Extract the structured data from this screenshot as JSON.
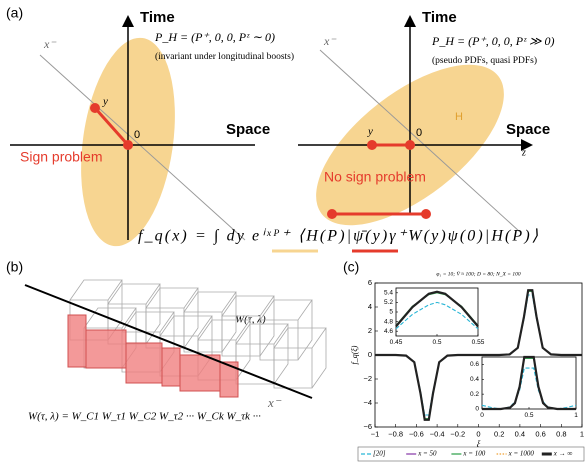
{
  "panel_a": {
    "label": "(a)",
    "left": {
      "time": "Time",
      "space": "Space",
      "light_cone": "x⁻",
      "momentum": "P_H = (P⁺, 0, 0, Pᶻ ∼ 0)",
      "note": "(invariant under longitudinal boosts)",
      "point_y": "y",
      "origin": "0",
      "caption": "Sign problem"
    },
    "right": {
      "time": "Time",
      "space": "Space",
      "light_cone": "x⁻",
      "momentum": "P_H = (P⁺, 0, 0, Pᶻ ≫ 0)",
      "note": "(pseudo PDFs, quasi PDFs)",
      "hadron": "H",
      "point_y": "y",
      "origin": "0",
      "z_axis": "z",
      "caption": "No sign problem"
    },
    "formula": "f_q(x) = ∫ dy eⁱˣᴾ⁺ ⟨H(P)|ψ̄(y)γ⁺W(y)ψ(0)|H(P)⟩"
  },
  "panel_b": {
    "label": "(b)",
    "wilson_line": "W(τ, λ)",
    "light_cone": "x⁻",
    "formula": "W(τ, λ) = W_C1 W_τ1 W_C2 W_τ2 ··· W_Ck W_τk ···"
  },
  "panel_c": {
    "label": "(c)"
  },
  "chart_data": [
    {
      "type": "line",
      "title": "φ₁ = 10;  V̄ ≈ 100;  D = 80;  N_X = 100",
      "x_label": "ξ",
      "y_label": "f_q(ξ)",
      "x": [
        -1,
        -0.8,
        -0.7,
        -0.62,
        -0.56,
        -0.52,
        -0.48,
        -0.44,
        -0.38,
        -0.3,
        -0.2,
        0,
        0.2,
        0.3,
        0.38,
        0.44,
        0.48,
        0.52,
        0.56,
        0.62,
        0.7,
        0.8,
        1
      ],
      "xlim": [
        -1,
        1
      ],
      "ylim": [
        -6,
        6
      ],
      "xticks": [
        {
          "value": -1,
          "label": "−1"
        },
        {
          "value": -0.8,
          "label": "−0.8"
        },
        {
          "value": -0.6,
          "label": "−0.6"
        },
        {
          "value": -0.4,
          "label": "−0.4"
        },
        {
          "value": -0.2,
          "label": "−0.2"
        },
        0,
        0.2,
        0.4,
        0.6,
        0.8,
        1
      ],
      "yticks": [
        {
          "value": -6,
          "label": "−6"
        },
        {
          "value": -4,
          "label": "−4"
        },
        {
          "value": -2,
          "label": "−2"
        },
        0,
        2,
        4,
        6
      ],
      "legend": "bottom",
      "series": [
        {
          "name": "[20]",
          "color": "#29b6d6",
          "style": "dashed",
          "values": [
            0,
            0,
            -0.05,
            -0.6,
            -3,
            -5,
            -5,
            -3,
            -0.6,
            -0.05,
            0,
            0,
            0,
            0.05,
            0.6,
            3,
            5,
            5,
            3,
            0.6,
            0.05,
            0,
            0
          ]
        },
        {
          "name": "x = 50",
          "color": "#8e44ad",
          "style": "solid",
          "values": [
            0,
            0,
            -0.05,
            -0.6,
            -3.2,
            -5.3,
            -5.3,
            -3.2,
            -0.6,
            -0.05,
            0,
            0,
            0,
            0.05,
            0.6,
            3.2,
            5.3,
            5.3,
            3.2,
            0.6,
            0.05,
            0,
            0
          ]
        },
        {
          "name": "x = 100",
          "color": "#3aa655",
          "style": "solid",
          "values": [
            0,
            0,
            -0.05,
            -0.6,
            -3.2,
            -5.3,
            -5.3,
            -3.2,
            -0.6,
            -0.05,
            0,
            0,
            0,
            0.05,
            0.6,
            3.2,
            5.3,
            5.3,
            3.2,
            0.6,
            0.05,
            0,
            0
          ]
        },
        {
          "name": "x = 1000",
          "color": "#f0a030",
          "style": "dotted",
          "values": [
            0,
            0,
            -0.05,
            -0.6,
            -3.2,
            -5.4,
            -5.4,
            -3.2,
            -0.6,
            -0.05,
            0,
            0,
            0,
            0.05,
            0.6,
            3.2,
            5.4,
            5.4,
            3.2,
            0.6,
            0.05,
            0,
            0
          ]
        },
        {
          "name": "x → ∞",
          "color": "#222222",
          "style": "thick",
          "values": [
            0,
            0,
            -0.05,
            -0.6,
            -3.2,
            -5.4,
            -5.4,
            -3.2,
            -0.6,
            -0.05,
            0,
            0,
            0,
            0.05,
            0.6,
            3.2,
            5.4,
            5.4,
            3.2,
            0.6,
            0.05,
            0,
            0
          ]
        }
      ]
    },
    {
      "type": "line",
      "x": [
        0.45,
        0.47,
        0.49,
        0.5,
        0.51,
        0.53,
        0.55
      ],
      "xlim": [
        0.45,
        0.55
      ],
      "ylim": [
        4.5,
        5.5
      ],
      "xticks": [
        0.45,
        0.5,
        0.55
      ],
      "yticks": [
        4.6,
        4.8,
        5,
        5.2,
        5.4
      ],
      "series": [
        {
          "color": "#29b6d6",
          "style": "dashed",
          "values": [
            4.65,
            4.95,
            5.15,
            5.2,
            5.15,
            4.95,
            4.65
          ]
        },
        {
          "color": "#3aa655",
          "style": "solid",
          "values": [
            4.72,
            5.12,
            5.36,
            5.4,
            5.36,
            5.12,
            4.72
          ]
        },
        {
          "color": "#222222",
          "style": "thick",
          "values": [
            4.7,
            5.1,
            5.38,
            5.42,
            5.38,
            5.1,
            4.7
          ]
        }
      ]
    },
    {
      "type": "line",
      "x": [
        0,
        0.1,
        0.2,
        0.3,
        0.35,
        0.4,
        0.45,
        0.55,
        0.6,
        0.65,
        0.7,
        0.8,
        0.9,
        1
      ],
      "xlim": [
        0,
        1
      ],
      "ylim": [
        0,
        0.7
      ],
      "xticks": [
        0,
        0.5,
        1
      ],
      "yticks": [
        0,
        0.2,
        0.4,
        0.6
      ],
      "series": [
        {
          "color": "#29b6d6",
          "style": "dashed",
          "values": [
            0.05,
            0.02,
            0,
            0.03,
            0.1,
            0.25,
            0.55,
            0.55,
            0.25,
            0.1,
            0.03,
            0,
            0.02,
            0.05
          ]
        },
        {
          "color": "#3aa655",
          "style": "solid",
          "values": [
            0,
            0,
            0,
            0.02,
            0.08,
            0.3,
            0.68,
            0.68,
            0.3,
            0.08,
            0.02,
            0,
            0,
            0
          ]
        },
        {
          "color": "#222222",
          "style": "thick",
          "values": [
            0,
            0,
            0,
            0.02,
            0.08,
            0.3,
            0.7,
            0.7,
            0.3,
            0.08,
            0.02,
            0,
            0,
            0
          ]
        }
      ]
    }
  ]
}
